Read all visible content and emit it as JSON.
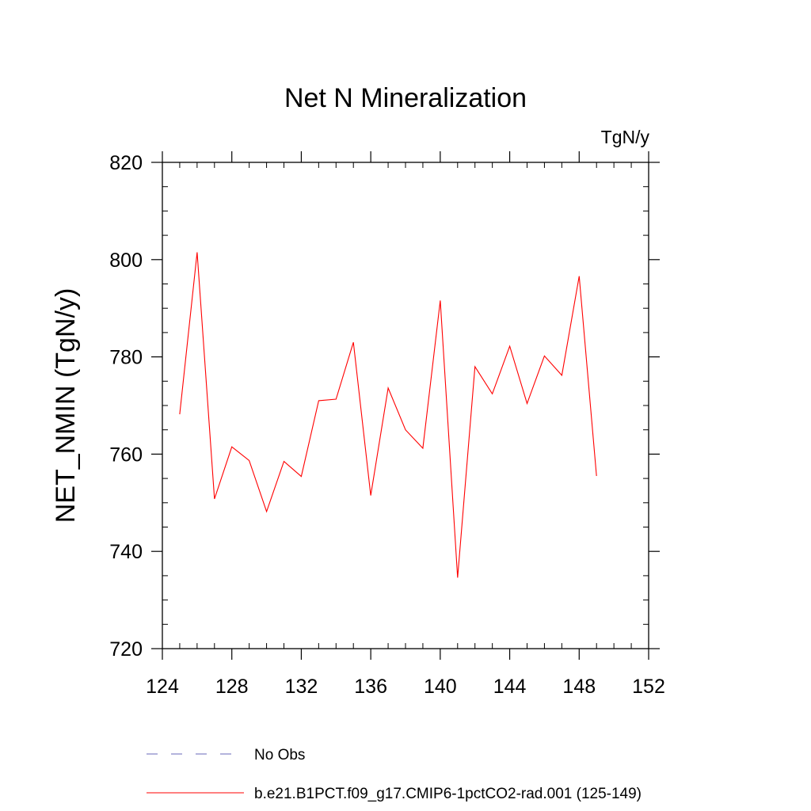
{
  "chart_data": {
    "type": "line",
    "title": "Net N Mineralization",
    "units_label": "TgN/y",
    "ylabel": "NET_NMIN  (TgN/y)",
    "xlabel": "",
    "xlim": [
      124,
      152
    ],
    "ylim": [
      720,
      820
    ],
    "x_ticks": [
      124,
      128,
      132,
      136,
      140,
      144,
      148,
      152
    ],
    "y_ticks": [
      720,
      740,
      760,
      780,
      800,
      820
    ],
    "x_minor_step": 1,
    "y_minor_step": 5,
    "grid": false,
    "legend_position": "bottom",
    "series": [
      {
        "name": "b.e21.B1PCT.f09_g17.CMIP6-1pctCO2-rad.001 (125-149)",
        "color": "#ff0000",
        "line_style": "solid",
        "x": [
          125,
          126,
          127,
          128,
          129,
          130,
          131,
          132,
          133,
          134,
          135,
          136,
          137,
          138,
          139,
          140,
          141,
          142,
          143,
          144,
          145,
          146,
          147,
          148,
          149
        ],
        "y": [
          768.2,
          801.5,
          750.8,
          761.5,
          758.7,
          748.2,
          758.5,
          755.4,
          771.0,
          771.3,
          783.0,
          751.5,
          773.6,
          765.0,
          761.2,
          791.6,
          734.6,
          778.0,
          772.4,
          782.2,
          770.4,
          780.2,
          776.2,
          796.6,
          755.5
        ]
      }
    ],
    "legend": [
      {
        "label": "No Obs",
        "color": "#6a6ab8",
        "line_style": "dashed"
      },
      {
        "label": "b.e21.B1PCT.f09_g17.CMIP6-1pctCO2-rad.001 (125-149)",
        "color": "#ff0000",
        "line_style": "solid"
      }
    ]
  }
}
